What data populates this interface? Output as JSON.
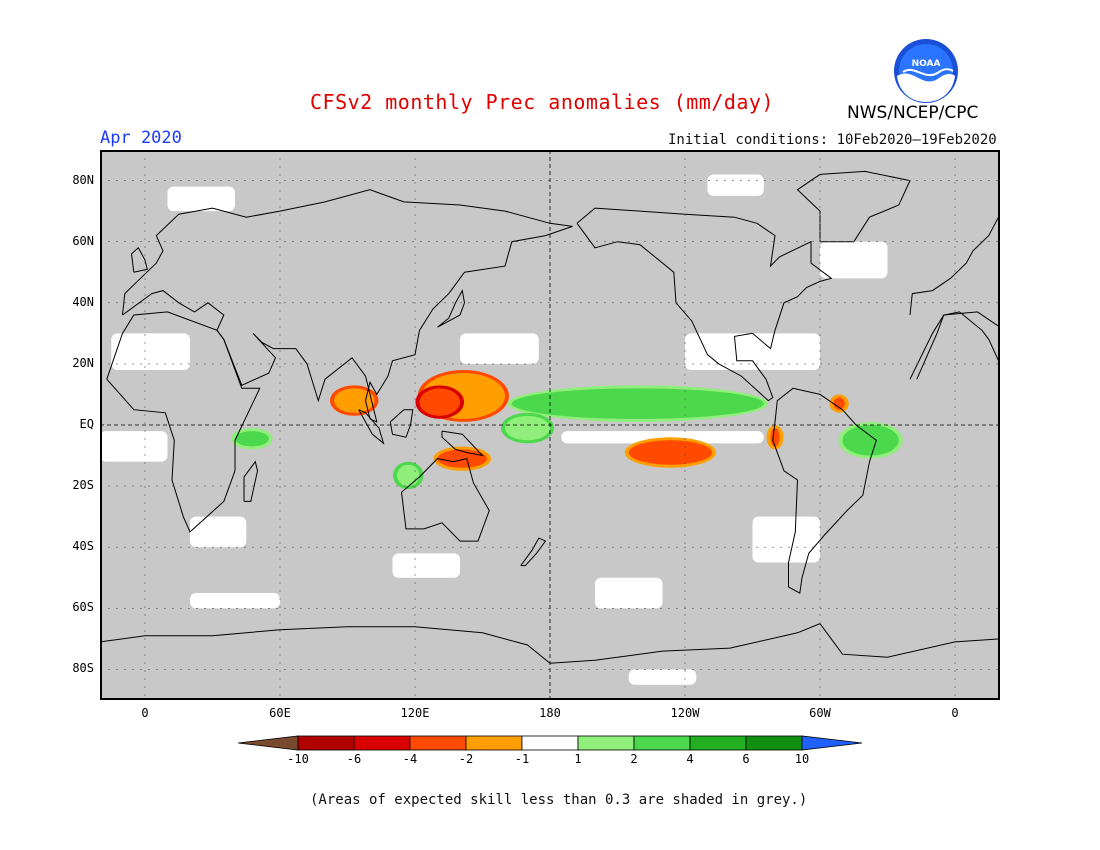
{
  "title": "CFSv2 monthly Prec anomalies (mm/day)",
  "month": "Apr 2020",
  "initial_conditions": "Initial conditions: 10Feb2020–19Feb2020",
  "agency": "NWS/NCEP/CPC",
  "logo_label": "NOAA",
  "note": "(Areas of expected skill less than 0.3 are shaded in grey.)",
  "colors": {
    "grey_mask": "#c8c8c8",
    "neutral": "#ffffff",
    "ocean_line": "#000000"
  },
  "map": {
    "lon_range": [
      -20,
      380
    ],
    "lat_range": [
      -90,
      90
    ],
    "lat_ticks": [
      {
        "lat": 80,
        "label": "80N"
      },
      {
        "lat": 60,
        "label": "60N"
      },
      {
        "lat": 40,
        "label": "40N"
      },
      {
        "lat": 20,
        "label": "20N"
      },
      {
        "lat": 0,
        "label": "EQ"
      },
      {
        "lat": -20,
        "label": "20S"
      },
      {
        "lat": -40,
        "label": "40S"
      },
      {
        "lat": -60,
        "label": "60S"
      },
      {
        "lat": -80,
        "label": "80S"
      }
    ],
    "lon_ticks": [
      {
        "lon": 0,
        "label": "0"
      },
      {
        "lon": 60,
        "label": "60E"
      },
      {
        "lon": 120,
        "label": "120E"
      },
      {
        "lon": 180,
        "label": "180"
      },
      {
        "lon": 240,
        "label": "120W"
      },
      {
        "lon": 300,
        "label": "60W"
      },
      {
        "lon": 360,
        "label": "0"
      }
    ]
  },
  "colorbar": {
    "boundaries": [
      "-10",
      "-6",
      "-4",
      "-2",
      "-1",
      "1",
      "2",
      "4",
      "6",
      "10"
    ],
    "colors": [
      "#7a4a2e",
      "#b00000",
      "#d80000",
      "#ff4a00",
      "#ff9e00",
      "#ffffff",
      "#90ee7a",
      "#4cd84c",
      "#22b022",
      "#109010",
      "#2060ff"
    ]
  },
  "anomalies": [
    {
      "name": "central-pacific-dry",
      "lon": [
        215,
        252
      ],
      "lat": [
        -13,
        -5
      ],
      "color": "#ff4a00",
      "edge": "#ff9e00"
    },
    {
      "name": "western-pacific-dry",
      "lon": [
        123,
        160
      ],
      "lat": [
        2,
        17
      ],
      "color": "#ff9e00",
      "edge": "#ff4a00"
    },
    {
      "name": "philippines-dry-core",
      "lon": [
        122,
        140
      ],
      "lat": [
        3,
        12
      ],
      "color": "#ff4a00",
      "edge": "#d80000"
    },
    {
      "name": "bay-of-bengal-dry",
      "lon": [
        84,
        102
      ],
      "lat": [
        4,
        12
      ],
      "color": "#ff9e00",
      "edge": "#ff4a00"
    },
    {
      "name": "new-guinea-dry",
      "lon": [
        130,
        152
      ],
      "lat": [
        -14,
        -8
      ],
      "color": "#ff4a00",
      "edge": "#ff9e00"
    },
    {
      "name": "itcz-wet",
      "lon": [
        163,
        275
      ],
      "lat": [
        2,
        12
      ],
      "color": "#4cd84c",
      "edge": "#90ee7a"
    },
    {
      "name": "equatorial-pacific-wet",
      "lon": [
        160,
        180
      ],
      "lat": [
        -5,
        3
      ],
      "color": "#90ee7a",
      "edge": "#4cd84c"
    },
    {
      "name": "brazil-wet",
      "lon": [
        310,
        335
      ],
      "lat": [
        -10,
        0
      ],
      "color": "#4cd84c",
      "edge": "#90ee7a"
    },
    {
      "name": "africa-east-wet",
      "lon": [
        40,
        55
      ],
      "lat": [
        -7,
        -2
      ],
      "color": "#4cd84c",
      "edge": "#90ee7a"
    },
    {
      "name": "peru-coast-dry",
      "lon": [
        278,
        282
      ],
      "lat": [
        -7,
        -1
      ],
      "color": "#ff4a00",
      "edge": "#ff9e00"
    },
    {
      "name": "caribbean-dry",
      "lon": [
        306,
        311
      ],
      "lat": [
        5,
        9
      ],
      "color": "#ff4a00",
      "edge": "#ff9e00"
    },
    {
      "name": "australia-west-wet",
      "lon": [
        112,
        122
      ],
      "lat": [
        -20,
        -13
      ],
      "color": "#90ee7a",
      "edge": "#4cd84c"
    }
  ],
  "neutral_areas": [
    {
      "lon": [
        -20,
        10
      ],
      "lat": [
        -12,
        -2
      ]
    },
    {
      "lon": [
        20,
        45
      ],
      "lat": [
        -40,
        -30
      ]
    },
    {
      "lon": [
        185,
        275
      ],
      "lat": [
        -6,
        -2
      ]
    },
    {
      "lon": [
        240,
        300
      ],
      "lat": [
        18,
        30
      ]
    },
    {
      "lon": [
        270,
        300
      ],
      "lat": [
        -45,
        -30
      ]
    },
    {
      "lon": [
        215,
        245
      ],
      "lat": [
        -85,
        -80
      ]
    },
    {
      "lon": [
        20,
        60
      ],
      "lat": [
        -60,
        -55
      ]
    },
    {
      "lon": [
        140,
        175
      ],
      "lat": [
        20,
        30
      ]
    },
    {
      "lon": [
        -15,
        20
      ],
      "lat": [
        18,
        30
      ]
    },
    {
      "lon": [
        300,
        330
      ],
      "lat": [
        48,
        60
      ]
    },
    {
      "lon": [
        250,
        275
      ],
      "lat": [
        75,
        82
      ]
    },
    {
      "lon": [
        10,
        40
      ],
      "lat": [
        70,
        78
      ]
    },
    {
      "lon": [
        110,
        140
      ],
      "lat": [
        -50,
        -42
      ]
    },
    {
      "lon": [
        200,
        230
      ],
      "lat": [
        -60,
        -50
      ]
    }
  ]
}
